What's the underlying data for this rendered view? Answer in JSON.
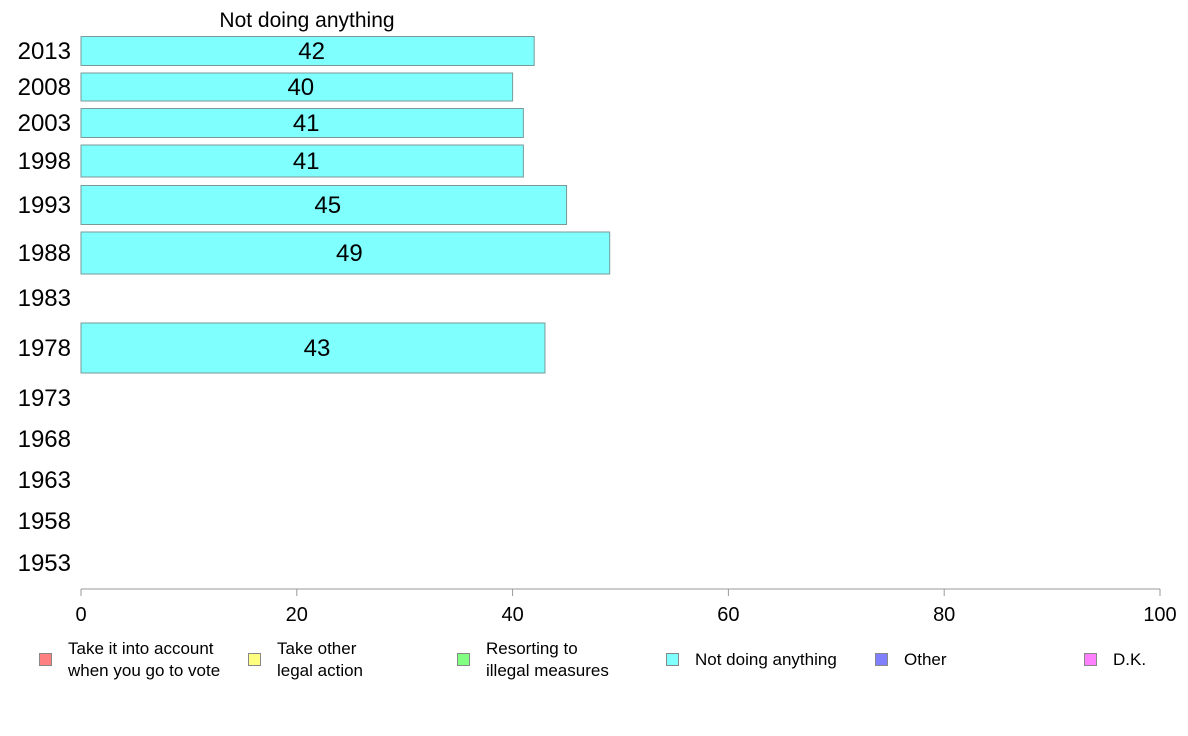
{
  "chart_data": {
    "type": "bar",
    "orientation": "horizontal",
    "title": "Not doing anything",
    "categories": [
      "2013",
      "2008",
      "2003",
      "1998",
      "1993",
      "1988",
      "1983",
      "1978",
      "1973",
      "1968",
      "1963",
      "1958",
      "1953"
    ],
    "values": [
      42,
      40,
      41,
      41,
      45,
      49,
      null,
      43,
      null,
      null,
      null,
      null,
      null
    ],
    "data_labels": [
      "42",
      "40",
      "41",
      "41",
      "45",
      "49",
      "",
      "43",
      "",
      "",
      "",
      "",
      ""
    ],
    "x_ticks": [
      "0",
      "20",
      "40",
      "60",
      "80",
      100
    ],
    "xlim": [
      0,
      100
    ],
    "grid": false,
    "bar_color": "#80ffff",
    "legend_position": "bottom"
  },
  "legend": [
    {
      "label": "Take it into account\nwhen you go to vote",
      "color": "#ff8080"
    },
    {
      "label": "Take other\nlegal action",
      "color": "#ffff80"
    },
    {
      "label": "Resorting to\nillegal measures",
      "color": "#80ff80"
    },
    {
      "label": "Not doing anything",
      "color": "#80ffff"
    },
    {
      "label": "Other",
      "color": "#8080ff"
    },
    {
      "label": "D.K.",
      "color": "#ff80ff"
    }
  ]
}
